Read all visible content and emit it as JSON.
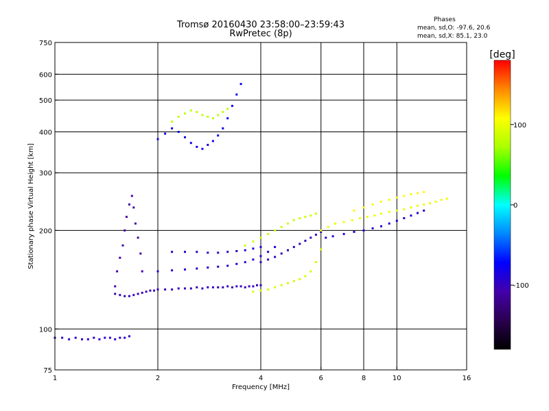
{
  "chart_data": {
    "type": "scatter",
    "title": "Tromsø 20160430 23:58:00–23:59:43",
    "subtitle": "RwPretec (8p)",
    "phases": {
      "heading": "Phases",
      "line_o": "mean, sd,O: -97.6, 20.6",
      "line_x": "mean, sd,X:  85.1, 23.0"
    },
    "xlabel": "Frequency [MHz]",
    "ylabel": "Stationary phase Virtual Height [km]",
    "x_scale": "log",
    "y_scale": "log",
    "xlim": [
      1,
      16
    ],
    "ylim": [
      75,
      750
    ],
    "x_ticks": [
      {
        "value": 1,
        "label": "1"
      },
      {
        "value": 2,
        "label": "2"
      },
      {
        "value": 4,
        "label": "4"
      },
      {
        "value": 6,
        "label": "6"
      },
      {
        "value": 8,
        "label": "8"
      },
      {
        "value": 10,
        "label": "10"
      },
      {
        "value": 16,
        "label": "16"
      }
    ],
    "y_ticks": [
      {
        "value": 75,
        "label": "75"
      },
      {
        "value": 100,
        "label": "100"
      },
      {
        "value": 200,
        "label": "200"
      },
      {
        "value": 300,
        "label": "300"
      },
      {
        "value": 400,
        "label": "400"
      },
      {
        "value": 500,
        "label": "500"
      },
      {
        "value": 600,
        "label": "600"
      },
      {
        "value": 750,
        "label": "750"
      }
    ],
    "x_grid": [
      2,
      4,
      6,
      8,
      10
    ],
    "y_grid": [
      100,
      200,
      300,
      400,
      500,
      600
    ],
    "colorbar": {
      "label": "[deg]",
      "range": [
        -180,
        180
      ],
      "ticks": [
        {
          "value": 100,
          "label": "100"
        },
        {
          "value": 0,
          "label": "0"
        },
        {
          "value": -100,
          "label": "-100"
        }
      ],
      "colors": [
        "#000000",
        "#2a0050",
        "#4400aa",
        "#0000ff",
        "#0088ff",
        "#00ffff",
        "#00ff00",
        "#aaff00",
        "#ffff00",
        "#ff8800",
        "#ff0000"
      ]
    },
    "series": [
      {
        "x": [
          1.0,
          1.05,
          1.1,
          1.15,
          1.2,
          1.25,
          1.3,
          1.35,
          1.4,
          1.45,
          1.5,
          1.55,
          1.6,
          1.65
        ],
        "y": [
          94,
          94,
          93,
          94,
          93,
          93,
          94,
          93,
          94,
          94,
          93,
          94,
          94,
          95
        ],
        "phase": -95
      },
      {
        "x": [
          1.5,
          1.55,
          1.6,
          1.65,
          1.7,
          1.75,
          1.8,
          1.85,
          1.9,
          1.95,
          2.0,
          2.1,
          2.2,
          2.3,
          2.4,
          2.5,
          2.6,
          2.7,
          2.8,
          2.9,
          3.0,
          3.1,
          3.2,
          3.3,
          3.4,
          3.5,
          3.6,
          3.7,
          3.8,
          3.9,
          4.0
        ],
        "y": [
          128,
          127,
          126,
          126,
          127,
          128,
          129,
          130,
          131,
          131,
          132,
          132,
          132,
          133,
          133,
          133,
          134,
          133,
          134,
          134,
          134,
          134,
          135,
          134,
          135,
          135,
          134,
          135,
          135,
          136,
          136
        ],
        "phase": -100
      },
      {
        "x": [
          1.5,
          1.52,
          1.55,
          1.58,
          1.6,
          1.62,
          1.65,
          1.68,
          1.7,
          1.72,
          1.75,
          1.78,
          1.8
        ],
        "y": [
          135,
          150,
          165,
          180,
          200,
          220,
          240,
          255,
          235,
          210,
          190,
          170,
          150
        ],
        "phase": -110
      },
      {
        "x": [
          2.0,
          2.2,
          2.4,
          2.6,
          2.8,
          3.0,
          3.2,
          3.4,
          3.6,
          3.8,
          4.0,
          4.2,
          4.4
        ],
        "y": [
          150,
          151,
          152,
          153,
          154,
          155,
          156,
          158,
          160,
          163,
          167,
          172,
          178
        ],
        "phase": -90
      },
      {
        "x": [
          2.2,
          2.4,
          2.6,
          2.8,
          3.0,
          3.2,
          3.4,
          3.6,
          3.8,
          4.0
        ],
        "y": [
          172,
          172,
          172,
          171,
          171,
          172,
          173,
          174,
          176,
          178
        ],
        "phase": -95
      },
      {
        "x": [
          2.0,
          2.1,
          2.2,
          2.3,
          2.4,
          2.5,
          2.6,
          2.7,
          2.8,
          2.9,
          3.0,
          3.1,
          3.2,
          3.3,
          3.4,
          3.5
        ],
        "y": [
          380,
          395,
          410,
          400,
          385,
          370,
          360,
          355,
          365,
          375,
          390,
          410,
          440,
          480,
          520,
          560
        ],
        "phase": -80
      },
      {
        "x": [
          2.2,
          2.3,
          2.4,
          2.5,
          2.6,
          2.7,
          2.8,
          2.9,
          3.0,
          3.1,
          3.2
        ],
        "y": [
          430,
          445,
          455,
          465,
          460,
          450,
          445,
          440,
          450,
          460,
          470
        ],
        "phase": 80
      },
      {
        "x": [
          3.8,
          4.0,
          4.2,
          4.4,
          4.6,
          4.8,
          5.0,
          5.2,
          5.4,
          5.6,
          5.8,
          6.0
        ],
        "y": [
          130,
          131,
          132,
          134,
          136,
          138,
          140,
          142,
          145,
          150,
          160,
          175
        ],
        "phase": 90
      },
      {
        "x": [
          3.6,
          3.8,
          4.0,
          4.2,
          4.4,
          4.6,
          4.8,
          5.0,
          5.2,
          5.4,
          5.6,
          5.8
        ],
        "y": [
          180,
          185,
          190,
          195,
          200,
          205,
          210,
          215,
          218,
          220,
          222,
          225
        ],
        "phase": 85
      },
      {
        "x": [
          4.0,
          4.2,
          4.4,
          4.6,
          4.8,
          5.0,
          5.2,
          5.4,
          5.6,
          5.8,
          6.0
        ],
        "y": [
          160,
          163,
          166,
          170,
          174,
          178,
          182,
          186,
          190,
          194,
          198
        ],
        "phase": -100
      },
      {
        "x": [
          6.0,
          6.3,
          6.6,
          7.0,
          7.4,
          7.8,
          8.2,
          8.6,
          9.0,
          9.5,
          10.0,
          10.5,
          11.0,
          11.5,
          12.0,
          12.5,
          13.0,
          13.5,
          14.0
        ],
        "y": [
          200,
          205,
          210,
          212,
          215,
          218,
          220,
          222,
          225,
          228,
          230,
          232,
          235,
          238,
          240,
          242,
          245,
          248,
          250
        ],
        "phase": 100
      },
      {
        "x": [
          6.2,
          6.5,
          7.0,
          7.5,
          8.0,
          8.5,
          9.0,
          9.5,
          10.0,
          10.5,
          11.0,
          11.5,
          12.0
        ],
        "y": [
          190,
          192,
          195,
          198,
          200,
          203,
          206,
          210,
          214,
          218,
          222,
          226,
          230
        ],
        "phase": -90
      },
      {
        "x": [
          7.5,
          8.0,
          8.5,
          9.0,
          9.5,
          10.0,
          10.5,
          11.0,
          11.5,
          12.0
        ],
        "y": [
          230,
          235,
          240,
          245,
          248,
          252,
          255,
          258,
          260,
          262
        ],
        "phase": 110
      }
    ]
  }
}
